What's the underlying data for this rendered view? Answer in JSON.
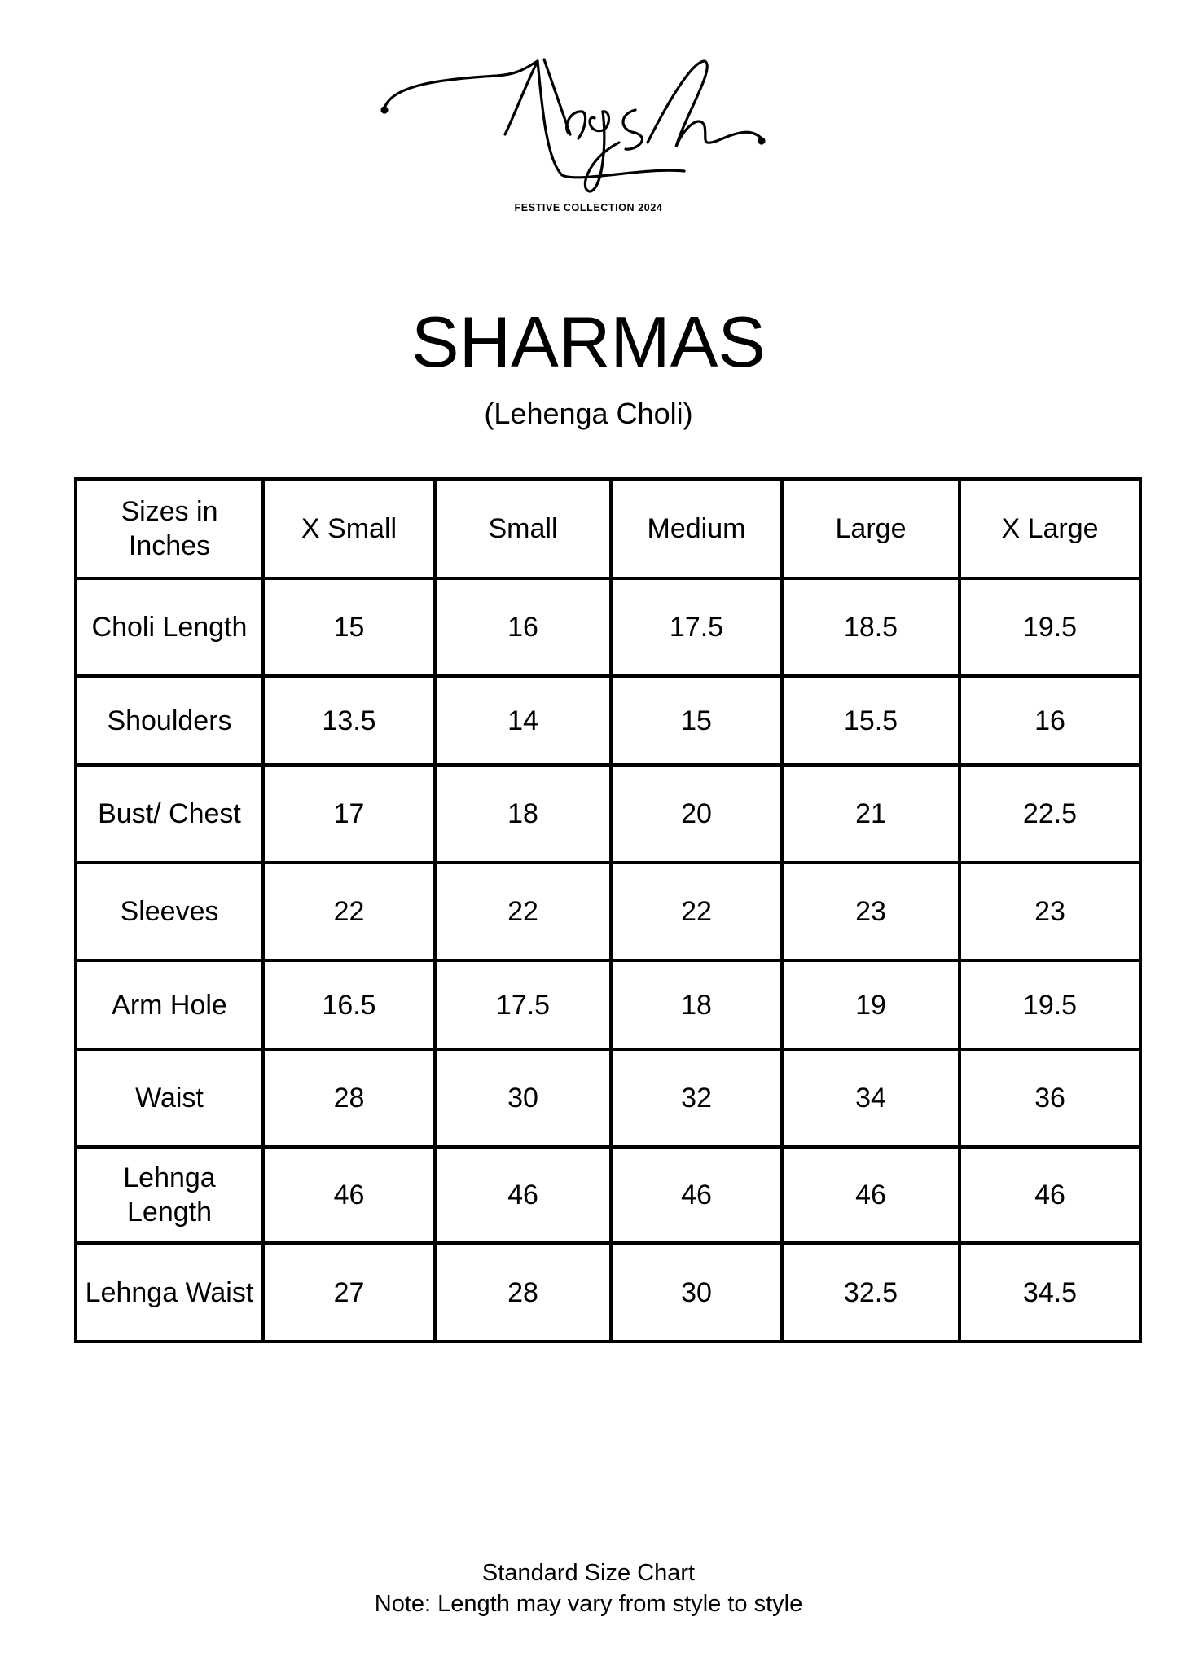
{
  "brand": {
    "logo_text": "Naqsh",
    "tagline": "FESTIVE COLLECTION 2024"
  },
  "title": "SHARMAS",
  "subtitle": "(Lehenga Choli)",
  "table": {
    "headers": [
      "Sizes in Inches",
      "X Small",
      "Small",
      "Medium",
      "Large",
      "X Large"
    ],
    "rows": [
      {
        "label": "Choli Length",
        "values": [
          "15",
          "16",
          "17.5",
          "18.5",
          "19.5"
        ]
      },
      {
        "label": "Shoulders",
        "values": [
          "13.5",
          "14",
          "15",
          "15.5",
          "16"
        ]
      },
      {
        "label": "Bust/ Chest",
        "values": [
          "17",
          "18",
          "20",
          "21",
          "22.5"
        ]
      },
      {
        "label": "Sleeves",
        "values": [
          "22",
          "22",
          "22",
          "23",
          "23"
        ]
      },
      {
        "label": "Arm Hole",
        "values": [
          "16.5",
          "17.5",
          "18",
          "19",
          "19.5"
        ]
      },
      {
        "label": "Waist",
        "values": [
          "28",
          "30",
          "32",
          "34",
          "36"
        ]
      },
      {
        "label": "Lehnga Length",
        "values": [
          "46",
          "46",
          "46",
          "46",
          "46"
        ]
      },
      {
        "label": "Lehnga Waist",
        "values": [
          "27",
          "28",
          "30",
          "32.5",
          "34.5"
        ]
      }
    ]
  },
  "footer": {
    "line1": "Standard Size Chart",
    "line2": "Note: Length may vary from style to style"
  }
}
